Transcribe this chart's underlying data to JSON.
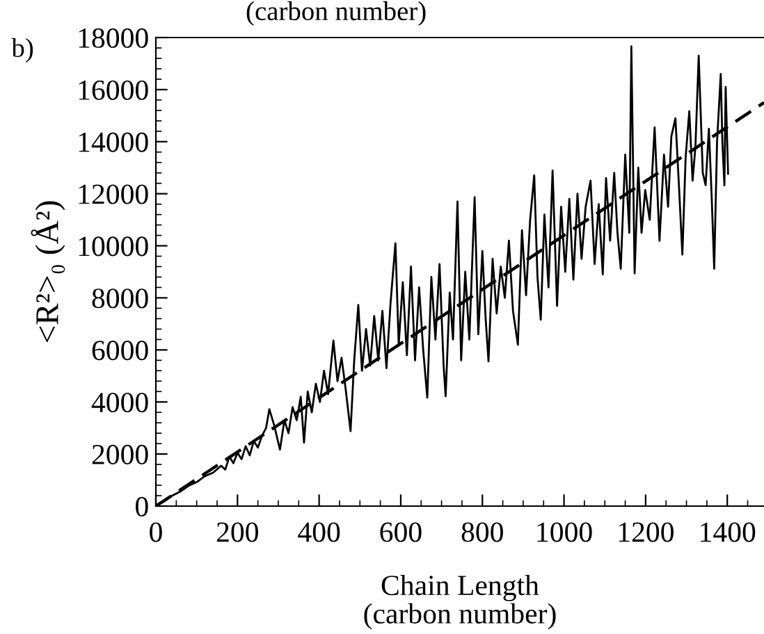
{
  "chart_data": {
    "type": "line",
    "xlabel": "Chain Length\n(carbon number)",
    "ylabel": "<R²>₀ (Å²)",
    "annotations": [
      "b)",
      "(carbon number)"
    ],
    "xlim": [
      0,
      1490
    ],
    "xticks": [
      0,
      200,
      400,
      600,
      800,
      1000,
      1200,
      1400
    ],
    "ylim": [
      0,
      18000
    ],
    "yticks": [
      0,
      2000,
      4000,
      6000,
      8000,
      10000,
      12000,
      14000,
      16000,
      18000
    ],
    "grid": false,
    "legend": false,
    "marker": "none",
    "series": [
      {
        "color": "#000000",
        "line_style": "solid",
        "x": [
          0,
          20,
          40,
          60,
          80,
          100,
          120,
          140,
          160,
          170,
          180,
          190,
          200,
          210,
          220,
          230,
          240,
          250,
          260,
          270,
          278,
          290,
          304,
          315,
          325,
          335,
          345,
          355,
          363,
          372,
          382,
          392,
          402,
          412,
          422,
          435,
          445,
          455,
          465,
          477,
          486,
          496,
          505,
          515,
          525,
          535,
          545,
          555,
          565,
          575,
          587,
          595,
          605,
          615,
          625,
          635,
          645,
          655,
          665,
          675,
          685,
          695,
          705,
          710,
          720,
          728,
          739,
          748,
          758,
          768,
          781,
          790,
          800,
          808,
          815,
          825,
          835,
          845,
          855,
          865,
          875,
          887,
          897,
          907,
          917,
          927,
          935,
          943,
          952,
          962,
          972,
          983,
          993,
          1003,
          1013,
          1023,
          1033,
          1043,
          1053,
          1065,
          1075,
          1085,
          1095,
          1103,
          1113,
          1123,
          1131,
          1139,
          1150,
          1160,
          1165,
          1173,
          1182,
          1190,
          1199,
          1210,
          1222,
          1234,
          1245,
          1255,
          1263,
          1273,
          1281,
          1290,
          1298,
          1307,
          1315,
          1322,
          1330,
          1340,
          1347,
          1355,
          1362,
          1368,
          1375,
          1384,
          1388,
          1393,
          1396,
          1402
        ],
        "values": [
          0,
          180,
          400,
          560,
          780,
          920,
          1150,
          1280,
          1550,
          1400,
          1900,
          1650,
          2050,
          1800,
          2300,
          1950,
          2500,
          2250,
          2700,
          3000,
          3720,
          3100,
          2170,
          3300,
          2800,
          3800,
          3300,
          4200,
          2440,
          4400,
          3600,
          4700,
          4000,
          5200,
          4300,
          6360,
          4800,
          5700,
          4500,
          2880,
          5600,
          7730,
          5200,
          6800,
          5400,
          7300,
          5600,
          7500,
          5300,
          7800,
          10100,
          6200,
          8600,
          5800,
          9200,
          5600,
          8400,
          6000,
          4170,
          8800,
          6400,
          9300,
          5400,
          4220,
          8200,
          6400,
          11700,
          5600,
          9000,
          6400,
          11870,
          6600,
          9800,
          7200,
          5560,
          9500,
          7400,
          9200,
          8000,
          10200,
          7500,
          6200,
          10600,
          8100,
          11000,
          12710,
          8800,
          7160,
          11200,
          8400,
          12890,
          7690,
          11500,
          9000,
          11800,
          8700,
          12000,
          9500,
          11500,
          12500,
          9300,
          11600,
          8900,
          12600,
          10200,
          12800,
          10500,
          9120,
          13500,
          10500,
          17660,
          8940,
          13000,
          10500,
          12140,
          11000,
          14550,
          10190,
          13500,
          11500,
          14200,
          14900,
          12500,
          9660,
          13400,
          15170,
          12500,
          13800,
          17300,
          12800,
          12330,
          14500,
          11800,
          9120,
          14000,
          16600,
          14000,
          12320,
          16100,
          12770
        ]
      },
      {
        "color": "#000000",
        "line_style": "dashed",
        "x": [
          0,
          1490
        ],
        "values": [
          0,
          15500
        ]
      }
    ]
  }
}
